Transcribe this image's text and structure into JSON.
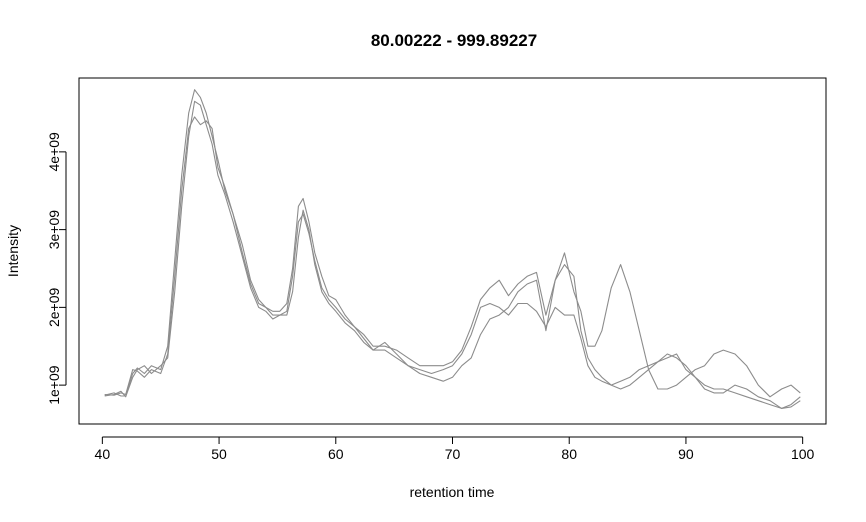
{
  "chart_data": {
    "type": "line",
    "title": "80.00222 - 999.89227",
    "xlabel": "retention time",
    "ylabel": "Intensity",
    "xlim": [
      38,
      102
    ],
    "ylim": [
      500000000,
      4950000000
    ],
    "x_ticks": [
      40,
      50,
      60,
      70,
      80,
      90,
      100
    ],
    "x_tick_labels": [
      "40",
      "50",
      "60",
      "70",
      "80",
      "90",
      "100"
    ],
    "y_ticks": [
      1000000000,
      2000000000,
      3000000000,
      4000000000
    ],
    "y_tick_labels": [
      "1e+09",
      "2e+09",
      "3e+09",
      "4e+09"
    ],
    "grid": false,
    "line_color": "#8c8c8c",
    "series": [
      {
        "values": [
          [
            40.2,
            870000000
          ],
          [
            41.0,
            900000000
          ],
          [
            41.6,
            860000000
          ],
          [
            42.0,
            860000000
          ],
          [
            42.6,
            1150000000
          ],
          [
            43.0,
            1220000000
          ],
          [
            43.6,
            1150000000
          ],
          [
            44.2,
            1250000000
          ],
          [
            45.0,
            1200000000
          ],
          [
            45.6,
            1500000000
          ],
          [
            46.2,
            2600000000
          ],
          [
            46.8,
            3700000000
          ],
          [
            47.4,
            4500000000
          ],
          [
            47.9,
            4800000000
          ],
          [
            48.4,
            4700000000
          ],
          [
            48.9,
            4500000000
          ],
          [
            49.4,
            4200000000
          ],
          [
            49.9,
            3900000000
          ],
          [
            50.5,
            3500000000
          ],
          [
            51.2,
            3200000000
          ],
          [
            52.0,
            2700000000
          ],
          [
            52.7,
            2300000000
          ],
          [
            53.4,
            2050000000
          ],
          [
            54.0,
            2000000000
          ],
          [
            54.6,
            1950000000
          ],
          [
            55.2,
            1950000000
          ],
          [
            55.8,
            2050000000
          ],
          [
            56.3,
            2500000000
          ],
          [
            56.8,
            3300000000
          ],
          [
            57.2,
            3400000000
          ],
          [
            57.7,
            3100000000
          ],
          [
            58.2,
            2700000000
          ],
          [
            58.8,
            2400000000
          ],
          [
            59.4,
            2150000000
          ],
          [
            60.0,
            2100000000
          ],
          [
            60.8,
            1900000000
          ],
          [
            61.6,
            1750000000
          ],
          [
            62.4,
            1650000000
          ],
          [
            63.2,
            1500000000
          ],
          [
            64.2,
            1500000000
          ],
          [
            65.2,
            1450000000
          ],
          [
            66.2,
            1350000000
          ],
          [
            67.2,
            1250000000
          ],
          [
            68.2,
            1250000000
          ],
          [
            69.2,
            1250000000
          ],
          [
            70.0,
            1300000000
          ],
          [
            70.8,
            1450000000
          ],
          [
            71.6,
            1750000000
          ],
          [
            72.4,
            2100000000
          ],
          [
            73.2,
            2250000000
          ],
          [
            74.0,
            2350000000
          ],
          [
            74.8,
            2150000000
          ],
          [
            75.6,
            2300000000
          ],
          [
            76.4,
            2400000000
          ],
          [
            77.2,
            2450000000
          ],
          [
            78.0,
            1900000000
          ],
          [
            78.8,
            2350000000
          ],
          [
            79.6,
            2550000000
          ],
          [
            80.4,
            2400000000
          ],
          [
            81.0,
            1700000000
          ],
          [
            81.6,
            1350000000
          ],
          [
            82.2,
            1200000000
          ],
          [
            82.8,
            1100000000
          ],
          [
            83.6,
            1000000000
          ],
          [
            84.4,
            1050000000
          ],
          [
            85.2,
            1100000000
          ],
          [
            86.0,
            1200000000
          ],
          [
            86.8,
            1250000000
          ],
          [
            87.6,
            1300000000
          ],
          [
            88.4,
            1400000000
          ],
          [
            89.2,
            1350000000
          ],
          [
            90.0,
            1250000000
          ],
          [
            90.8,
            1100000000
          ],
          [
            91.6,
            1000000000
          ],
          [
            92.4,
            950000000
          ],
          [
            93.2,
            950000000
          ],
          [
            94.2,
            900000000
          ],
          [
            95.2,
            850000000
          ],
          [
            96.2,
            800000000
          ],
          [
            97.2,
            750000000
          ],
          [
            98.2,
            700000000
          ],
          [
            99.0,
            720000000
          ],
          [
            99.8,
            800000000
          ]
        ]
      },
      {
        "values": [
          [
            40.2,
            880000000
          ],
          [
            41.0,
            870000000
          ],
          [
            41.6,
            900000000
          ],
          [
            42.0,
            880000000
          ],
          [
            42.6,
            1200000000
          ],
          [
            43.0,
            1180000000
          ],
          [
            43.6,
            1100000000
          ],
          [
            44.2,
            1200000000
          ],
          [
            45.0,
            1150000000
          ],
          [
            45.6,
            1400000000
          ],
          [
            46.2,
            2400000000
          ],
          [
            46.8,
            3500000000
          ],
          [
            47.4,
            4300000000
          ],
          [
            47.9,
            4450000000
          ],
          [
            48.4,
            4350000000
          ],
          [
            48.9,
            4400000000
          ],
          [
            49.4,
            4300000000
          ],
          [
            49.9,
            3800000000
          ],
          [
            50.5,
            3550000000
          ],
          [
            51.2,
            3200000000
          ],
          [
            52.0,
            2800000000
          ],
          [
            52.7,
            2350000000
          ],
          [
            53.4,
            2100000000
          ],
          [
            54.0,
            2000000000
          ],
          [
            54.6,
            1900000000
          ],
          [
            55.2,
            1900000000
          ],
          [
            55.8,
            1950000000
          ],
          [
            56.3,
            2400000000
          ],
          [
            56.8,
            3100000000
          ],
          [
            57.2,
            3200000000
          ],
          [
            57.7,
            2950000000
          ],
          [
            58.2,
            2600000000
          ],
          [
            58.8,
            2250000000
          ],
          [
            59.4,
            2100000000
          ],
          [
            60.0,
            2000000000
          ],
          [
            60.8,
            1850000000
          ],
          [
            61.6,
            1750000000
          ],
          [
            62.4,
            1600000000
          ],
          [
            63.2,
            1450000000
          ],
          [
            64.2,
            1550000000
          ],
          [
            65.2,
            1400000000
          ],
          [
            66.2,
            1250000000
          ],
          [
            67.2,
            1200000000
          ],
          [
            68.2,
            1150000000
          ],
          [
            69.2,
            1200000000
          ],
          [
            70.0,
            1250000000
          ],
          [
            70.8,
            1400000000
          ],
          [
            71.6,
            1650000000
          ],
          [
            72.4,
            2000000000
          ],
          [
            73.2,
            2050000000
          ],
          [
            74.0,
            2000000000
          ],
          [
            74.8,
            1900000000
          ],
          [
            75.6,
            2050000000
          ],
          [
            76.4,
            2050000000
          ],
          [
            77.2,
            1950000000
          ],
          [
            78.0,
            1750000000
          ],
          [
            78.8,
            2000000000
          ],
          [
            79.6,
            1900000000
          ],
          [
            80.4,
            1900000000
          ],
          [
            81.0,
            1600000000
          ],
          [
            81.6,
            1250000000
          ],
          [
            82.2,
            1100000000
          ],
          [
            82.8,
            1050000000
          ],
          [
            83.6,
            1000000000
          ],
          [
            84.4,
            950000000
          ],
          [
            85.2,
            1000000000
          ],
          [
            86.0,
            1100000000
          ],
          [
            86.8,
            1200000000
          ],
          [
            87.6,
            1300000000
          ],
          [
            88.4,
            1350000000
          ],
          [
            89.2,
            1400000000
          ],
          [
            90.0,
            1200000000
          ],
          [
            90.8,
            1100000000
          ],
          [
            91.6,
            950000000
          ],
          [
            92.4,
            900000000
          ],
          [
            93.2,
            900000000
          ],
          [
            94.2,
            1000000000
          ],
          [
            95.2,
            950000000
          ],
          [
            96.2,
            850000000
          ],
          [
            97.2,
            800000000
          ],
          [
            98.2,
            700000000
          ],
          [
            99.0,
            750000000
          ],
          [
            99.8,
            850000000
          ]
        ]
      },
      {
        "values": [
          [
            40.2,
            860000000
          ],
          [
            41.0,
            880000000
          ],
          [
            41.6,
            920000000
          ],
          [
            42.0,
            850000000
          ],
          [
            42.6,
            1100000000
          ],
          [
            43.0,
            1200000000
          ],
          [
            43.6,
            1250000000
          ],
          [
            44.2,
            1150000000
          ],
          [
            45.0,
            1250000000
          ],
          [
            45.6,
            1350000000
          ],
          [
            46.2,
            2200000000
          ],
          [
            46.8,
            3300000000
          ],
          [
            47.4,
            4200000000
          ],
          [
            47.9,
            4650000000
          ],
          [
            48.4,
            4600000000
          ],
          [
            48.9,
            4350000000
          ],
          [
            49.4,
            4100000000
          ],
          [
            49.9,
            3700000000
          ],
          [
            50.5,
            3450000000
          ],
          [
            51.2,
            3100000000
          ],
          [
            52.0,
            2650000000
          ],
          [
            52.7,
            2250000000
          ],
          [
            53.4,
            2000000000
          ],
          [
            54.0,
            1950000000
          ],
          [
            54.6,
            1850000000
          ],
          [
            55.2,
            1900000000
          ],
          [
            55.8,
            1900000000
          ],
          [
            56.3,
            2200000000
          ],
          [
            56.8,
            2900000000
          ],
          [
            57.2,
            3250000000
          ],
          [
            57.7,
            3000000000
          ],
          [
            58.2,
            2550000000
          ],
          [
            58.8,
            2200000000
          ],
          [
            59.4,
            2050000000
          ],
          [
            60.0,
            1950000000
          ],
          [
            60.8,
            1800000000
          ],
          [
            61.6,
            1700000000
          ],
          [
            62.4,
            1550000000
          ],
          [
            63.2,
            1450000000
          ],
          [
            64.2,
            1450000000
          ],
          [
            65.2,
            1350000000
          ],
          [
            66.2,
            1250000000
          ],
          [
            67.2,
            1150000000
          ],
          [
            68.2,
            1100000000
          ],
          [
            69.2,
            1050000000
          ],
          [
            70.0,
            1100000000
          ],
          [
            70.8,
            1250000000
          ],
          [
            71.6,
            1350000000
          ],
          [
            72.4,
            1650000000
          ],
          [
            73.2,
            1850000000
          ],
          [
            74.0,
            1900000000
          ],
          [
            74.8,
            2000000000
          ],
          [
            75.6,
            2200000000
          ],
          [
            76.4,
            2300000000
          ],
          [
            77.2,
            2350000000
          ],
          [
            78.0,
            1700000000
          ],
          [
            78.8,
            2350000000
          ],
          [
            79.6,
            2700000000
          ],
          [
            80.4,
            2200000000
          ],
          [
            81.0,
            1950000000
          ],
          [
            81.6,
            1500000000
          ],
          [
            82.2,
            1500000000
          ],
          [
            82.8,
            1700000000
          ],
          [
            83.6,
            2250000000
          ],
          [
            84.4,
            2550000000
          ],
          [
            85.2,
            2200000000
          ],
          [
            86.0,
            1700000000
          ],
          [
            86.8,
            1200000000
          ],
          [
            87.6,
            950000000
          ],
          [
            88.4,
            950000000
          ],
          [
            89.2,
            1000000000
          ],
          [
            90.0,
            1100000000
          ],
          [
            90.8,
            1200000000
          ],
          [
            91.6,
            1250000000
          ],
          [
            92.4,
            1400000000
          ],
          [
            93.2,
            1450000000
          ],
          [
            94.2,
            1400000000
          ],
          [
            95.2,
            1250000000
          ],
          [
            96.2,
            1000000000
          ],
          [
            97.2,
            850000000
          ],
          [
            98.2,
            950000000
          ],
          [
            99.0,
            1000000000
          ],
          [
            99.8,
            900000000
          ]
        ]
      }
    ]
  }
}
